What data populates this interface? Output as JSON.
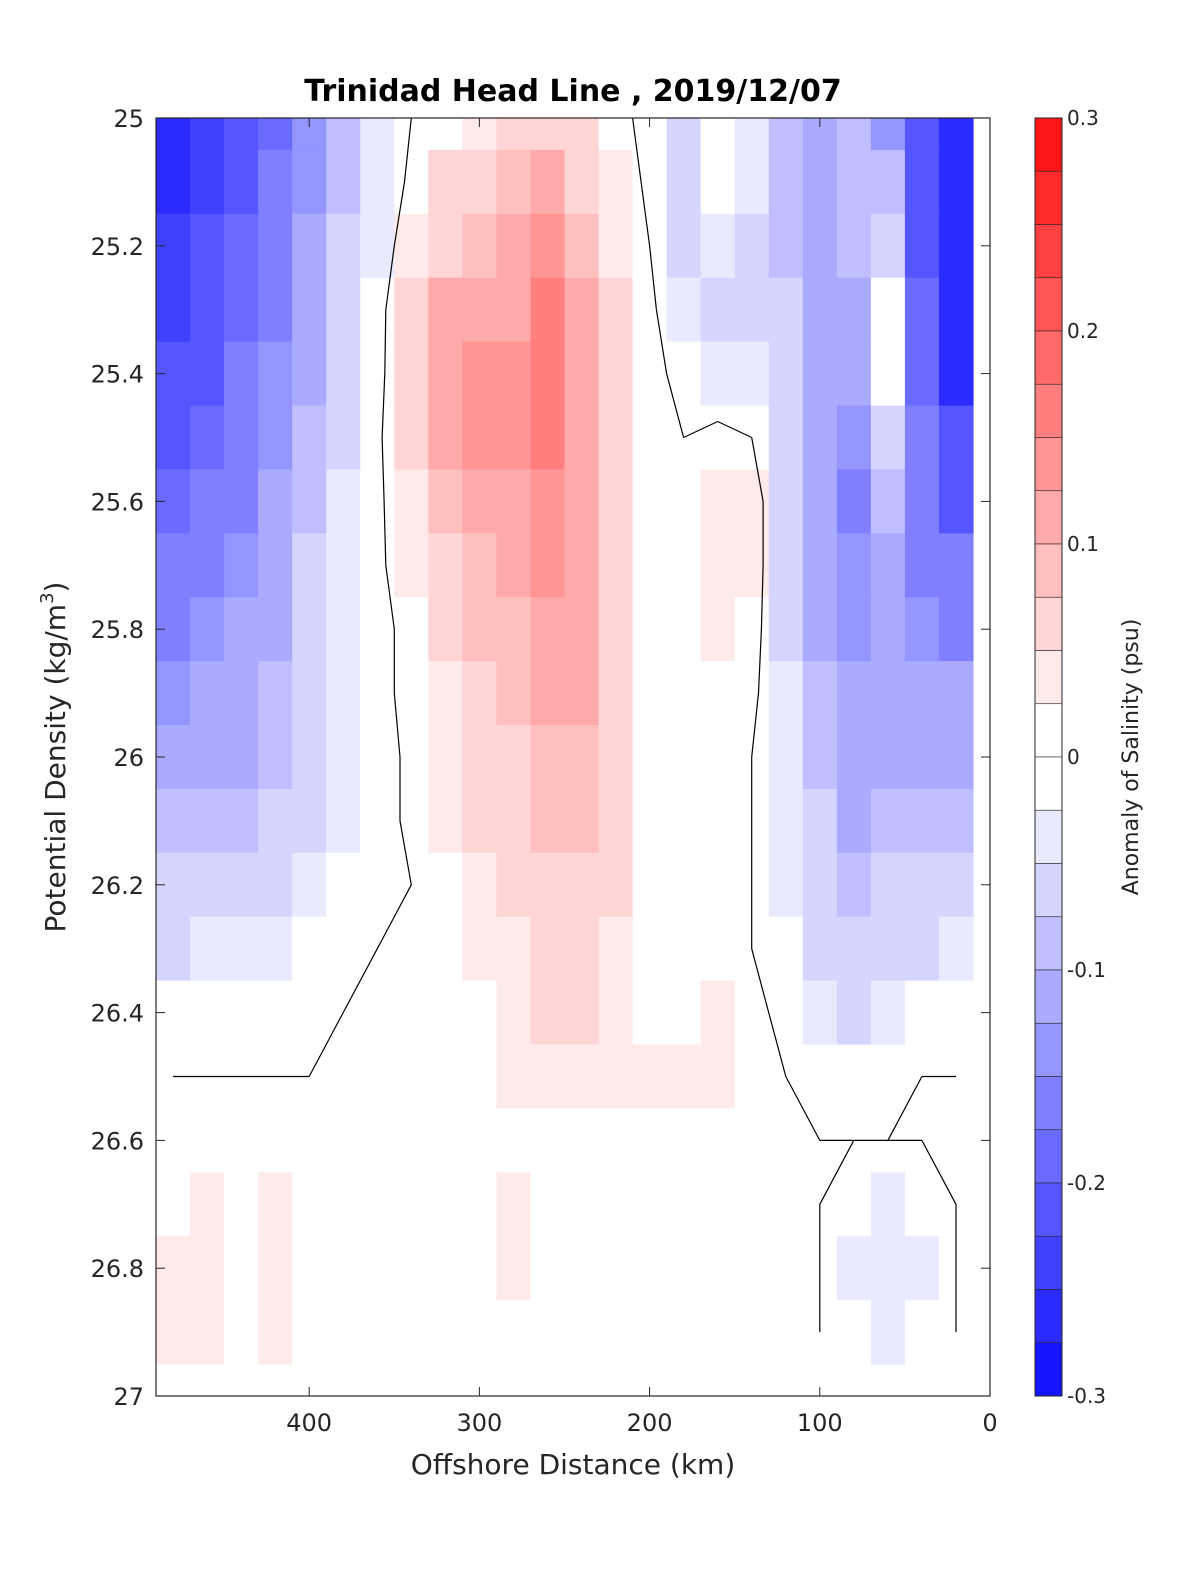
{
  "chart_data": {
    "type": "heatmap",
    "title": "Trinidad Head Line , 2019/12/07",
    "xlabel": "Offshore Distance (km)",
    "ylabel_prefix": "Potential Density (kg/m",
    "ylabel_sup": "3",
    "ylabel_suffix": ")",
    "xlim": [
      490,
      0
    ],
    "ylim": [
      25,
      27
    ],
    "x_ticks": [
      400,
      300,
      200,
      100,
      0
    ],
    "x_tick_labels": [
      "400",
      "300",
      "200",
      "100",
      "0"
    ],
    "y_ticks": [
      25,
      25.2,
      25.4,
      25.6,
      25.8,
      26,
      26.2,
      26.4,
      26.6,
      26.8,
      27
    ],
    "y_tick_labels": [
      "25",
      "25.2",
      "25.4",
      "25.6",
      "25.8",
      "26",
      "26.2",
      "26.4",
      "26.6",
      "26.8",
      "27"
    ],
    "grid": false,
    "colorbar": {
      "label": "Anomaly of Salinity (psu)",
      "range": [
        -0.3,
        0.3
      ],
      "step": 0.025,
      "ticks": [
        0.3,
        0.2,
        0.1,
        0,
        -0.1,
        -0.2,
        -0.3
      ],
      "tick_labels": [
        "0.3",
        "0.2",
        "0.1",
        "0",
        "-0.1",
        "-0.2",
        "-0.3"
      ],
      "neg_color": "#0000ff",
      "pos_color": "#ff0000"
    },
    "x": [
      480,
      460,
      440,
      420,
      400,
      380,
      360,
      340,
      320,
      300,
      280,
      260,
      240,
      220,
      200,
      180,
      160,
      140,
      120,
      100,
      80,
      60,
      40,
      20
    ],
    "y": [
      25.0,
      25.1,
      25.2,
      25.3,
      25.4,
      25.5,
      25.6,
      25.7,
      25.8,
      25.9,
      26.0,
      26.1,
      26.2,
      26.3,
      26.4,
      26.5,
      26.6,
      26.7,
      26.8,
      26.9
    ],
    "z": [
      [
        -0.26,
        -0.24,
        -0.22,
        -0.19,
        -0.14,
        -0.09,
        -0.04,
        0.0,
        0.01,
        0.04,
        0.06,
        0.07,
        0.05,
        0.02,
        -0.02,
        -0.07,
        -0.01,
        -0.03,
        -0.09,
        -0.11,
        -0.08,
        -0.13,
        -0.22,
        -0.25
      ],
      [
        -0.25,
        -0.23,
        -0.2,
        -0.17,
        -0.13,
        -0.08,
        -0.04,
        0.01,
        0.05,
        0.06,
        0.09,
        0.11,
        0.07,
        0.03,
        -0.01,
        -0.06,
        -0.02,
        -0.04,
        -0.09,
        -0.11,
        -0.08,
        -0.09,
        -0.21,
        -0.25
      ],
      [
        -0.24,
        -0.22,
        -0.19,
        -0.16,
        -0.12,
        -0.07,
        -0.03,
        0.03,
        0.07,
        0.08,
        0.1,
        0.13,
        0.09,
        0.04,
        0.0,
        -0.05,
        -0.04,
        -0.05,
        -0.08,
        -0.11,
        -0.09,
        -0.05,
        -0.2,
        -0.25
      ],
      [
        -0.23,
        -0.21,
        -0.18,
        -0.15,
        -0.11,
        -0.07,
        -0.02,
        0.06,
        0.1,
        0.1,
        0.12,
        0.15,
        0.11,
        0.05,
        0.01,
        -0.04,
        -0.05,
        -0.06,
        -0.07,
        -0.11,
        -0.1,
        -0.01,
        -0.19,
        -0.25
      ],
      [
        -0.22,
        -0.2,
        -0.17,
        -0.14,
        -0.1,
        -0.06,
        -0.02,
        0.07,
        0.12,
        0.13,
        0.14,
        0.16,
        0.12,
        0.06,
        0.02,
        -0.02,
        -0.03,
        -0.04,
        -0.07,
        -0.11,
        -0.11,
        -0.02,
        -0.18,
        -0.25
      ],
      [
        -0.21,
        -0.19,
        -0.16,
        -0.13,
        -0.09,
        -0.05,
        -0.01,
        0.06,
        0.1,
        0.14,
        0.13,
        0.16,
        0.12,
        0.06,
        0.02,
        0.0,
        0.01,
        0.0,
        -0.06,
        -0.12,
        -0.14,
        -0.05,
        -0.17,
        -0.22
      ],
      [
        -0.19,
        -0.17,
        -0.15,
        -0.12,
        -0.08,
        -0.04,
        -0.01,
        0.04,
        0.08,
        0.1,
        0.12,
        0.14,
        0.12,
        0.06,
        0.02,
        0.0,
        0.03,
        0.03,
        -0.06,
        -0.12,
        -0.15,
        -0.08,
        -0.17,
        -0.2
      ],
      [
        -0.17,
        -0.15,
        -0.13,
        -0.11,
        -0.07,
        -0.03,
        -0.01,
        0.03,
        0.06,
        0.09,
        0.1,
        0.13,
        0.12,
        0.06,
        0.02,
        0.01,
        0.03,
        0.03,
        -0.06,
        -0.11,
        -0.14,
        -0.1,
        -0.15,
        -0.17
      ],
      [
        -0.15,
        -0.13,
        -0.12,
        -0.1,
        -0.06,
        -0.03,
        -0.02,
        0.02,
        0.05,
        0.08,
        0.09,
        0.12,
        0.12,
        0.06,
        0.02,
        0.01,
        0.03,
        0.02,
        -0.05,
        -0.1,
        -0.13,
        -0.12,
        -0.14,
        -0.15
      ],
      [
        -0.13,
        -0.12,
        -0.11,
        -0.09,
        -0.06,
        -0.03,
        -0.02,
        0.02,
        0.04,
        0.07,
        0.08,
        0.11,
        0.11,
        0.06,
        0.02,
        0.01,
        0.02,
        0.01,
        -0.04,
        -0.09,
        -0.12,
        -0.12,
        -0.12,
        -0.12
      ],
      [
        -0.11,
        -0.1,
        -0.1,
        -0.08,
        -0.05,
        -0.03,
        -0.02,
        0.01,
        0.03,
        0.06,
        0.07,
        0.09,
        0.09,
        0.06,
        0.02,
        0.01,
        0.01,
        0.0,
        -0.04,
        -0.08,
        -0.11,
        -0.1,
        -0.1,
        -0.1
      ],
      [
        -0.09,
        -0.08,
        -0.08,
        -0.07,
        -0.05,
        -0.03,
        -0.02,
        0.01,
        0.03,
        0.05,
        0.06,
        0.08,
        0.08,
        0.06,
        0.02,
        0.01,
        0.01,
        0.0,
        -0.03,
        -0.07,
        -0.1,
        -0.09,
        -0.08,
        -0.08
      ],
      [
        -0.07,
        -0.06,
        -0.06,
        -0.05,
        -0.04,
        -0.02,
        -0.01,
        0.0,
        0.02,
        0.04,
        0.05,
        0.07,
        0.07,
        0.05,
        0.02,
        0.01,
        0.01,
        0.0,
        -0.03,
        -0.06,
        -0.08,
        -0.07,
        -0.06,
        -0.06
      ],
      [
        -0.05,
        -0.04,
        -0.04,
        -0.03,
        -0.02,
        -0.01,
        0.0,
        0.0,
        0.02,
        0.03,
        0.04,
        0.06,
        0.06,
        0.04,
        0.02,
        0.01,
        0.01,
        0.0,
        -0.02,
        -0.05,
        -0.07,
        -0.06,
        -0.05,
        -0.04
      ],
      [
        -0.01,
        -0.01,
        -0.01,
        -0.01,
        -0.01,
        0.0,
        0.0,
        0.0,
        0.01,
        0.02,
        0.03,
        0.05,
        0.05,
        0.03,
        0.02,
        0.02,
        0.04,
        0.01,
        -0.01,
        -0.03,
        -0.05,
        -0.03,
        -0.02,
        -0.01
      ],
      [
        0.0,
        0.0,
        0.0,
        0.0,
        0.0,
        0.0,
        0.0,
        0.0,
        0.01,
        0.02,
        0.03,
        0.04,
        0.04,
        0.03,
        0.03,
        0.03,
        0.04,
        0.01,
        0.0,
        -0.01,
        -0.02,
        -0.01,
        0.0,
        0.0
      ],
      [
        0.0,
        0.0,
        0.0,
        0.0,
        0.0,
        0.0,
        0.0,
        0.0,
        0.0,
        0.01,
        0.02,
        0.02,
        0.01,
        0.01,
        0.01,
        0.01,
        0.0,
        0.0,
        0.0,
        0.0,
        0.0,
        0.0,
        0.0,
        0.0
      ],
      [
        0.02,
        0.03,
        0.01,
        0.03,
        0.0,
        0.0,
        0.0,
        0.0,
        0.0,
        0.01,
        0.03,
        0.01,
        0.0,
        0.0,
        0.0,
        0.0,
        0.0,
        0.0,
        0.0,
        0.0,
        -0.02,
        -0.03,
        -0.02,
        0.0
      ],
      [
        0.03,
        0.04,
        0.02,
        0.04,
        0.01,
        0.0,
        0.0,
        0.0,
        0.01,
        0.02,
        0.03,
        0.0,
        0.0,
        0.0,
        0.0,
        0.0,
        0.0,
        0.0,
        0.0,
        0.0,
        -0.03,
        -0.04,
        -0.03,
        0.0
      ],
      [
        0.03,
        0.03,
        0.02,
        0.03,
        0.01,
        0.02,
        0.0,
        0.0,
        0.01,
        0.02,
        0.02,
        0.0,
        0.0,
        0.0,
        0.0,
        0.0,
        0.0,
        0.0,
        0.0,
        0.0,
        -0.02,
        -0.03,
        -0.02,
        0.0
      ]
    ],
    "zero_contour": true
  }
}
